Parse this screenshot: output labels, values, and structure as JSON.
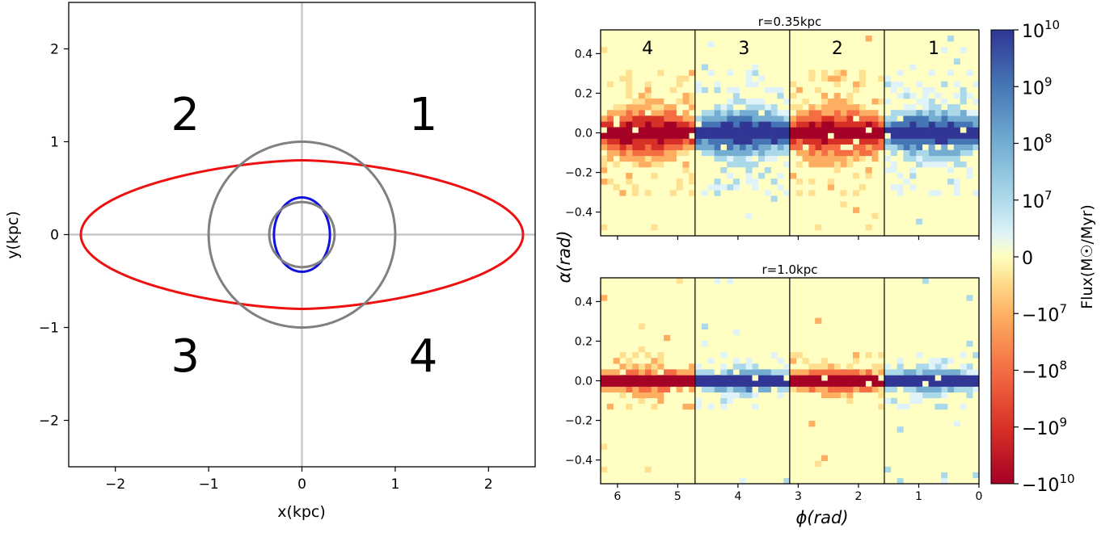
{
  "colors": {
    "orbit_red": "#ee1111",
    "orbit_blue": "#1111dd",
    "circle_gray": "#808080",
    "axis_line_gray": "#c8c8c8",
    "panel_bg": "#ffffc4",
    "cmap": [
      "#a50026",
      "#d73027",
      "#f46d43",
      "#fdae61",
      "#fee090",
      "#ffffbf",
      "#e0f3f8",
      "#abd9e9",
      "#74add1",
      "#4575b4",
      "#313695"
    ]
  },
  "chart_data": [
    {
      "id": "orbit_plot",
      "type": "line",
      "xlabel": "x(kpc)",
      "ylabel": "y(kpc)",
      "xlim": [
        -2.5,
        2.5
      ],
      "ylim": [
        -2.5,
        2.5
      ],
      "xticks": [
        -2,
        -1,
        0,
        1,
        2
      ],
      "yticks": [
        -2,
        -1,
        0,
        1,
        2
      ],
      "tick_labels": {
        "x": [
          "−2",
          "−1",
          "0",
          "1",
          "2"
        ],
        "y": [
          "−2",
          "−1",
          "0",
          "1",
          "2"
        ]
      },
      "quadrant_labels": [
        {
          "text": "2",
          "x": -1.25,
          "y": 1.3
        },
        {
          "text": "1",
          "x": 1.3,
          "y": 1.3
        },
        {
          "text": "3",
          "x": -1.25,
          "y": -1.3
        },
        {
          "text": "4",
          "x": 1.3,
          "y": -1.3
        }
      ],
      "series": [
        {
          "shape": "lens",
          "color": "red",
          "a": 2.37,
          "b": 0.8
        },
        {
          "shape": "ellipse",
          "color": "blue",
          "a": 0.3,
          "b": 0.4
        },
        {
          "shape": "circle",
          "color": "gray",
          "r": 1.0
        },
        {
          "shape": "circle",
          "color": "gray",
          "r": 0.35
        }
      ]
    },
    {
      "id": "flux_r035",
      "type": "heatmap",
      "title": "r=0.35kpc",
      "xlim": [
        6.28,
        0
      ],
      "ylim": [
        -0.52,
        0.52
      ],
      "yticks": [
        0.4,
        0.2,
        0.0,
        -0.2,
        -0.4
      ],
      "ytick_labels": [
        "0.4",
        "0.2",
        "0.0",
        "−0.2",
        "−0.4"
      ],
      "dividers": [
        1.5708,
        3.1416,
        4.7124
      ],
      "segment_labels": [
        {
          "text": "4",
          "x": 5.5
        },
        {
          "text": "3",
          "x": 3.9
        },
        {
          "text": "2",
          "x": 2.35
        },
        {
          "text": "1",
          "x": 0.75
        }
      ],
      "sign_per_segment": [
        -1,
        1,
        -1,
        1
      ],
      "half_width": 0.19,
      "seed": 7
    },
    {
      "id": "flux_r10",
      "type": "heatmap",
      "title": "r=1.0kpc",
      "xlabel": "ϕ(rad)",
      "ylabel": "α(rad)",
      "xlim": [
        6.28,
        0
      ],
      "ylim": [
        -0.52,
        0.52
      ],
      "xticks": [
        6,
        5,
        4,
        3,
        2,
        1,
        0
      ],
      "xtick_labels": [
        "6",
        "5",
        "4",
        "3",
        "2",
        "1",
        "0"
      ],
      "yticks": [
        0.4,
        0.2,
        0.0,
        -0.2,
        -0.4
      ],
      "ytick_labels": [
        "0.4",
        "0.2",
        "0.0",
        "−0.2",
        "−0.4"
      ],
      "dividers": [
        1.5708,
        3.1416,
        4.7124
      ],
      "sign_per_segment": [
        -1,
        1,
        -1,
        1
      ],
      "half_width": 0.09,
      "seed": 19
    }
  ],
  "colorbar": {
    "label": "Flux(M☉/Myr)",
    "ticks": [
      {
        "base": "10",
        "exp": "10"
      },
      {
        "base": "10",
        "exp": "9"
      },
      {
        "base": "10",
        "exp": "8"
      },
      {
        "base": "10",
        "exp": "7"
      },
      {
        "base": "0",
        "exp": ""
      },
      {
        "base": "−10",
        "exp": "7"
      },
      {
        "base": "−10",
        "exp": "8"
      },
      {
        "base": "−10",
        "exp": "9"
      },
      {
        "base": "−10",
        "exp": "10"
      }
    ]
  }
}
